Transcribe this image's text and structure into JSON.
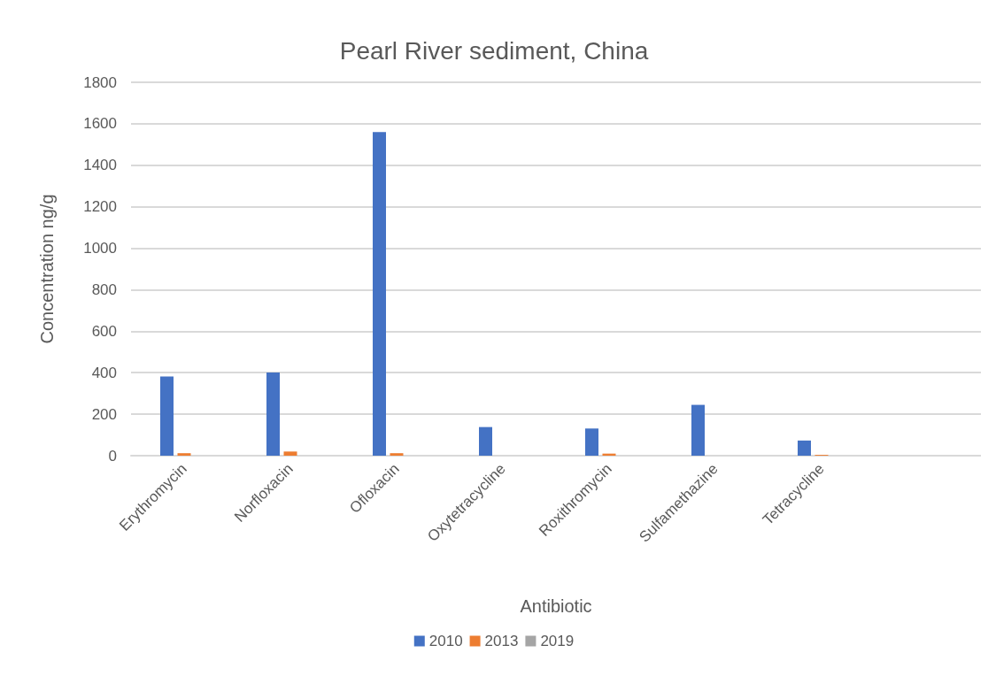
{
  "chart_data": {
    "type": "bar",
    "title": "Pearl River sediment, China",
    "xlabel": "Antibiotic",
    "ylabel": "Concentration ng/g",
    "categories": [
      "Erythromycin",
      "Norfloxacin",
      "Ofloxacin",
      "Oxytetracycline",
      "Roxithromycin",
      "Sulfamethazine",
      "Tetracycline",
      null
    ],
    "series": [
      {
        "name": "2010",
        "color": "#4472c4",
        "values": [
          382,
          401,
          1560,
          138,
          131,
          245,
          73,
          null
        ]
      },
      {
        "name": "2013",
        "color": "#ed7d31",
        "values": [
          12,
          20,
          12,
          null,
          10,
          null,
          4,
          null
        ]
      },
      {
        "name": "2019",
        "color": "#a5a5a5",
        "values": [
          null,
          null,
          null,
          null,
          null,
          null,
          null,
          null
        ]
      }
    ],
    "ylim": [
      0,
      1800
    ],
    "yticks": [
      0,
      200,
      400,
      600,
      800,
      1000,
      1200,
      1400,
      1600,
      1800
    ],
    "grid": "y",
    "legend": "bottom"
  }
}
